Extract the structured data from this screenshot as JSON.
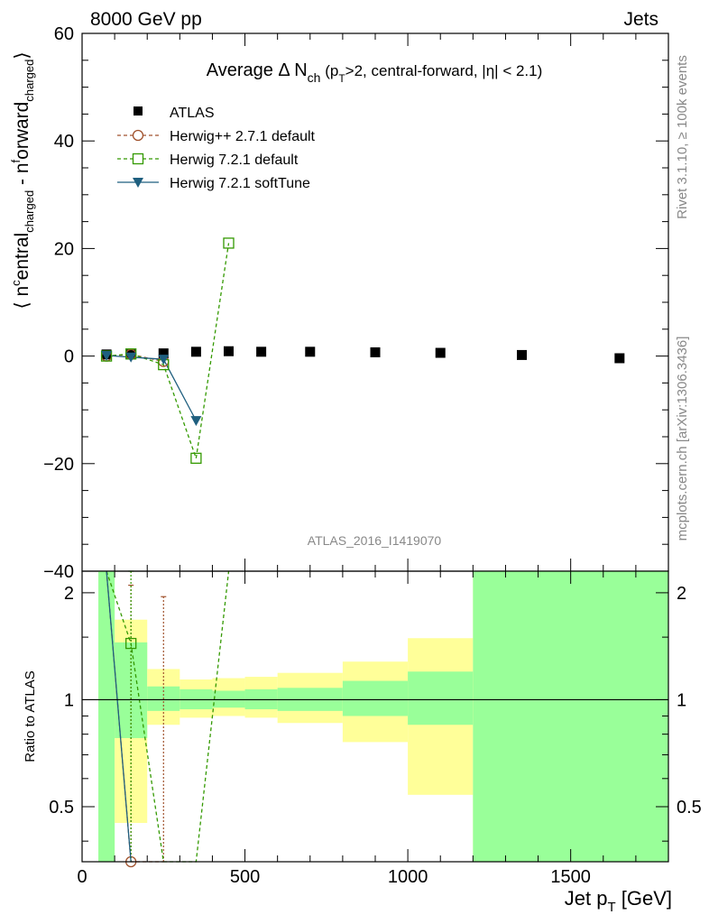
{
  "header": {
    "left": "8000 GeV pp",
    "right": "Jets"
  },
  "side_labels": {
    "rivet": "Rivet 3.1.10, ≥ 100k events",
    "mcplots": "mcplots.cern.ch [arXiv:1306.3436]"
  },
  "colors": {
    "atlas": "#000000",
    "herwigpp": "#a0522d",
    "herwig_default": "#339900",
    "herwig_soft": "#1f5f7f",
    "band_inner": "#99ff99",
    "band_outer": "#ffff99"
  },
  "chart_data": [
    {
      "type": "scatter",
      "title": "Average Δ N_ch (p_T>2, central-forward, |η| < 2.1)",
      "title_parts": {
        "main": "Average Δ N",
        "sub1": "ch",
        "paren1": " (p",
        "sub2": "T",
        "paren2": ">2, central-forward, |η| < 2.1)"
      },
      "ylabel": "⟨ n^central_charged - n^forward_charged ⟩",
      "ylabel_parts": {
        "lead": "⟨ n",
        "sup1": "c",
        "mid": "entral",
        "sub1": "charged",
        "dash": " - n",
        "sup2": "f",
        "mid2": "orward",
        "sub2": "charged",
        "tail": "⟩"
      },
      "watermark": "ATLAS_2016_I1419070",
      "xlim": [
        0,
        1800
      ],
      "ylim": [
        -40,
        60
      ],
      "y_ticks": [
        -40,
        -20,
        0,
        20,
        40,
        60
      ],
      "y_tick_labels": [
        "−40",
        "−20",
        "0",
        "20",
        "40",
        "60"
      ],
      "legend_position": "top-left",
      "series": [
        {
          "name": "ATLAS",
          "marker": "square-filled",
          "x": [
            75,
            150,
            250,
            350,
            450,
            550,
            700,
            900,
            1100,
            1350,
            1650
          ],
          "y": [
            0.3,
            0.3,
            0.5,
            0.8,
            0.9,
            0.8,
            0.8,
            0.7,
            0.6,
            0.2,
            -0.4
          ]
        },
        {
          "name": "Herwig++ 2.7.1 default",
          "marker": "circle-open",
          "line": "dashed",
          "x": [
            75,
            150,
            250
          ],
          "y": [
            0.0,
            0.3,
            -1.0
          ]
        },
        {
          "name": "Herwig 7.2.1 default",
          "marker": "square-open",
          "line": "dashed",
          "x": [
            75,
            150,
            250,
            350,
            450
          ],
          "y": [
            0.0,
            0.4,
            -1.6,
            -19.0,
            21.0
          ]
        },
        {
          "name": "Herwig 7.2.1 softTune",
          "marker": "triangle-down-filled",
          "line": "solid",
          "x": [
            75,
            150,
            250,
            350
          ],
          "y": [
            0.1,
            -0.2,
            -0.6,
            -12.0
          ]
        }
      ]
    },
    {
      "type": "line",
      "ylabel": "Ratio to ATLAS",
      "xlabel": "Jet p_T [GeV]",
      "xlabel_parts": {
        "main": "Jet p",
        "sub": "T",
        "unit": " [GeV]"
      },
      "xlim": [
        0,
        1800
      ],
      "ylim": [
        0.35,
        2.3
      ],
      "x_ticks": [
        0,
        500,
        1000,
        1500
      ],
      "x_tick_labels": [
        "0",
        "500",
        "1000",
        "1500"
      ],
      "y_ticks": [
        0.5,
        1,
        2
      ],
      "y_tick_labels": [
        "0.5",
        "1",
        "2"
      ],
      "bands": [
        {
          "xmin": 50,
          "xmax": 100,
          "inner": [
            0.35,
            2.3
          ],
          "outer": [
            0.35,
            2.3
          ]
        },
        {
          "xmin": 100,
          "xmax": 200,
          "inner": [
            0.78,
            1.45
          ],
          "outer": [
            0.45,
            1.68
          ]
        },
        {
          "xmin": 200,
          "xmax": 300,
          "inner": [
            0.93,
            1.09
          ],
          "outer": [
            0.85,
            1.22
          ]
        },
        {
          "xmin": 300,
          "xmax": 400,
          "inner": [
            0.94,
            1.07
          ],
          "outer": [
            0.89,
            1.14
          ]
        },
        {
          "xmin": 400,
          "xmax": 500,
          "inner": [
            0.95,
            1.06
          ],
          "outer": [
            0.9,
            1.15
          ]
        },
        {
          "xmin": 500,
          "xmax": 600,
          "inner": [
            0.94,
            1.07
          ],
          "outer": [
            0.89,
            1.16
          ]
        },
        {
          "xmin": 600,
          "xmax": 800,
          "inner": [
            0.93,
            1.08
          ],
          "outer": [
            0.86,
            1.19
          ]
        },
        {
          "xmin": 800,
          "xmax": 1000,
          "inner": [
            0.9,
            1.13
          ],
          "outer": [
            0.76,
            1.28
          ]
        },
        {
          "xmin": 1000,
          "xmax": 1200,
          "inner": [
            0.85,
            1.2
          ],
          "outer": [
            0.54,
            1.49
          ]
        },
        {
          "xmin": 1200,
          "xmax": 1800,
          "inner": [
            0.35,
            2.3
          ],
          "outer": [
            0.35,
            2.3
          ]
        }
      ],
      "series": [
        {
          "name": "Herwig++ 2.7.1 default",
          "line": "dashed",
          "x": [
            75,
            150,
            250
          ],
          "y": [
            2.3,
            0.35,
            0.35
          ],
          "marker_points": [
            {
              "x": 150,
              "y": 0.35
            }
          ],
          "error_bars": [
            {
              "x": 150,
              "low": 0.35,
              "high": 2.1
            },
            {
              "x": 250,
              "low": 0.35,
              "high": 1.95
            }
          ]
        },
        {
          "name": "Herwig 7.2.1 default",
          "line": "dashed",
          "x": [
            75,
            150,
            250,
            350,
            450
          ],
          "y": [
            2.3,
            1.44,
            0.35,
            0.35,
            2.3
          ],
          "marker_points": [
            {
              "x": 150,
              "y": 1.44
            }
          ],
          "error_bars": [
            {
              "x": 150,
              "low": 0.35,
              "high": 2.3
            }
          ]
        },
        {
          "name": "Herwig 7.2.1 softTune",
          "line": "solid",
          "x": [
            75,
            150
          ],
          "y": [
            2.3,
            0.35
          ]
        }
      ]
    }
  ]
}
